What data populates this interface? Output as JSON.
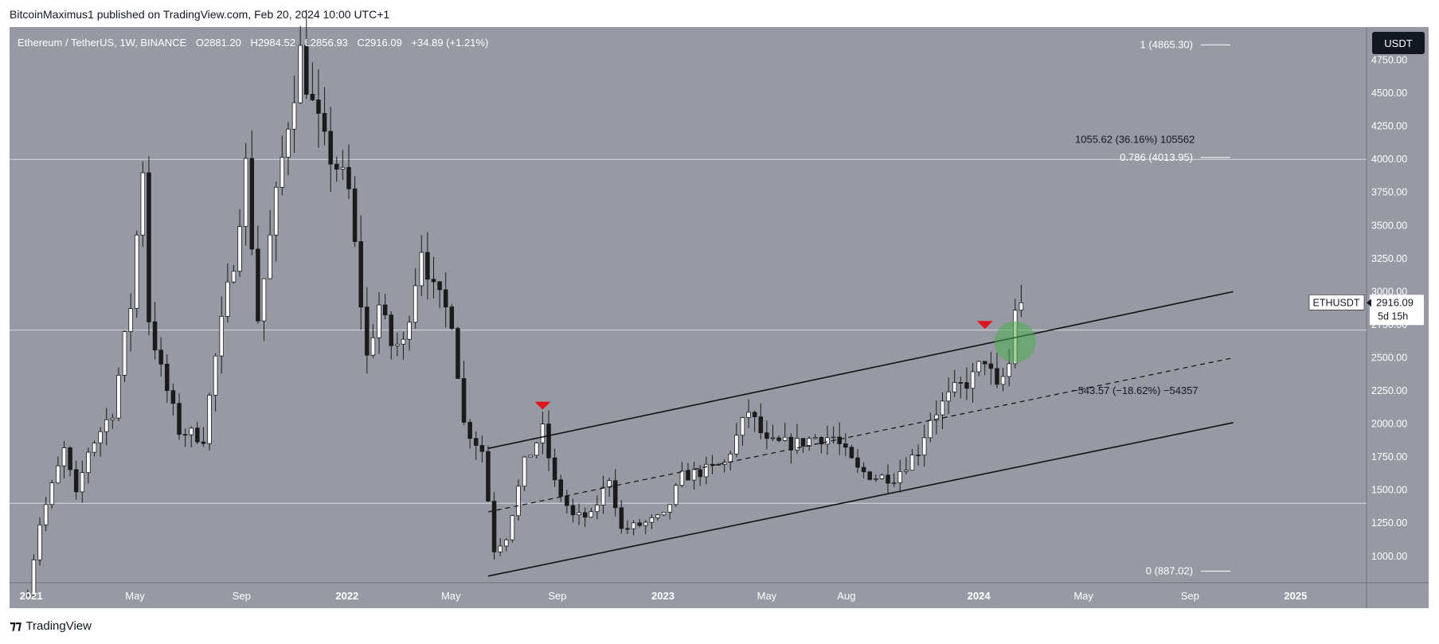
{
  "header": {
    "published_text": "BitcoinMaximus1 published on TradingView.com, Feb 20, 2024 10:00 UTC+1"
  },
  "footer": {
    "logo_text": "TradingView",
    "logo_icon": "tradingview-logo-icon"
  },
  "colors": {
    "panel_bg": "#979aa3",
    "axis_bg": "#979aa3",
    "candle_up": "#ffffff",
    "candle_down": "#1b1b1b",
    "wick": "#1b1b1b",
    "channel": "#111111",
    "signal_marker": "#e0141e",
    "breakout_circle": "#4caf50",
    "horizontal_level": "#d6d8dc"
  },
  "chart_data": {
    "type": "candlestick",
    "symbol_line": {
      "symbol": "Ethereum / TetherUS, 1W, BINANCE",
      "o_label": "O",
      "o_value": "2881.20",
      "h_label": "H",
      "h_value": "2984.52",
      "l_label": "L",
      "l_value": "2856.93",
      "c_label": "C",
      "c_value": "2916.09",
      "change": "+34.89 (+1.21%)"
    },
    "currency_button": "USDT",
    "ylim": [
      800,
      5000
    ],
    "y_ticks": [
      1000,
      1250,
      1500,
      1750,
      2000,
      2250,
      2500,
      2750,
      3000,
      3250,
      3500,
      3750,
      4000,
      4250,
      4500,
      4750
    ],
    "y_tick_labels": [
      "1000.00",
      "1250.00",
      "1500.00",
      "1750.00",
      "2000.00",
      "2250.00",
      "2500.00",
      "2750.00",
      "3000.00",
      "3250.00",
      "3500.00",
      "3750.00",
      "4000.00",
      "4250.00",
      "4500.00",
      "4750.00"
    ],
    "x_range": [
      "2020-12-07",
      "2025-03-24"
    ],
    "x_ticks": [
      {
        "date": "2021-01-01",
        "label": "2021",
        "bold": true
      },
      {
        "date": "2021-05-01",
        "label": "May",
        "bold": false
      },
      {
        "date": "2021-09-01",
        "label": "Sep",
        "bold": false
      },
      {
        "date": "2022-01-01",
        "label": "2022",
        "bold": true
      },
      {
        "date": "2022-05-01",
        "label": "May",
        "bold": false
      },
      {
        "date": "2022-09-01",
        "label": "Sep",
        "bold": false
      },
      {
        "date": "2023-01-01",
        "label": "2023",
        "bold": true
      },
      {
        "date": "2023-05-01",
        "label": "May",
        "bold": false
      },
      {
        "date": "2023-08-01",
        "label": "Aug",
        "bold": false
      },
      {
        "date": "2024-01-01",
        "label": "2024",
        "bold": true
      },
      {
        "date": "2024-05-01",
        "label": "May",
        "bold": false
      },
      {
        "date": "2024-09-01",
        "label": "Sep",
        "bold": false
      },
      {
        "date": "2025-01-01",
        "label": "2025",
        "bold": true
      }
    ],
    "price_path": [
      [
        "2020-12-28",
        730
      ],
      [
        "2021-01-11",
        1250
      ],
      [
        "2021-02-08",
        1800
      ],
      [
        "2021-02-22",
        1450
      ],
      [
        "2021-03-08",
        1800
      ],
      [
        "2021-04-05",
        2100
      ],
      [
        "2021-04-26",
        2900
      ],
      [
        "2021-05-10",
        3950
      ],
      [
        "2021-05-17",
        2800
      ],
      [
        "2021-05-31",
        2400
      ],
      [
        "2021-06-21",
        1950
      ],
      [
        "2021-07-19",
        1900
      ],
      [
        "2021-08-02",
        2500
      ],
      [
        "2021-08-23",
        3250
      ],
      [
        "2021-09-06",
        3950
      ],
      [
        "2021-09-20",
        2800
      ],
      [
        "2021-10-04",
        3400
      ],
      [
        "2021-10-25",
        4300
      ],
      [
        "2021-11-08",
        4800
      ],
      [
        "2021-11-22",
        4400
      ],
      [
        "2021-12-06",
        4100
      ],
      [
        "2021-12-20",
        3950
      ],
      [
        "2022-01-03",
        3750
      ],
      [
        "2022-01-24",
        2500
      ],
      [
        "2022-02-07",
        2900
      ],
      [
        "2022-02-21",
        2600
      ],
      [
        "2022-03-07",
        2600
      ],
      [
        "2022-03-28",
        3350
      ],
      [
        "2022-04-11",
        3000
      ],
      [
        "2022-05-02",
        2800
      ],
      [
        "2022-05-16",
        2000
      ],
      [
        "2022-06-06",
        1800
      ],
      [
        "2022-06-20",
        1050
      ],
      [
        "2022-07-04",
        1150
      ],
      [
        "2022-07-25",
        1700
      ],
      [
        "2022-08-15",
        1950
      ],
      [
        "2022-08-29",
        1550
      ],
      [
        "2022-09-19",
        1300
      ],
      [
        "2022-10-10",
        1300
      ],
      [
        "2022-10-31",
        1600
      ],
      [
        "2022-11-14",
        1200
      ],
      [
        "2022-12-12",
        1250
      ],
      [
        "2023-01-02",
        1300
      ],
      [
        "2023-01-23",
        1600
      ],
      [
        "2023-02-20",
        1650
      ],
      [
        "2023-03-13",
        1700
      ],
      [
        "2023-04-10",
        2100
      ],
      [
        "2023-05-01",
        1850
      ],
      [
        "2023-06-05",
        1850
      ],
      [
        "2023-06-26",
        1900
      ],
      [
        "2023-07-17",
        1900
      ],
      [
        "2023-08-14",
        1650
      ],
      [
        "2023-09-04",
        1600
      ],
      [
        "2023-09-25",
        1600
      ],
      [
        "2023-10-23",
        1800
      ],
      [
        "2023-11-06",
        2050
      ],
      [
        "2023-12-04",
        2250
      ],
      [
        "2023-12-25",
        2350
      ],
      [
        "2024-01-08",
        2500
      ],
      [
        "2024-01-22",
        2250
      ],
      [
        "2024-02-05",
        2450
      ],
      [
        "2024-02-12",
        2880
      ],
      [
        "2024-02-19",
        2916
      ]
    ],
    "horizontal_levels": [
      4000,
      2710,
      1400
    ],
    "channel": {
      "upper": [
        [
          "2022-06-13",
          1815
        ],
        [
          "2024-10-21",
          3000
        ]
      ],
      "middle": [
        [
          "2022-06-13",
          1335
        ],
        [
          "2024-10-21",
          2500
        ]
      ],
      "lower": [
        [
          "2022-06-13",
          850
        ],
        [
          "2024-10-21",
          2010
        ]
      ]
    },
    "signal_markers": [
      {
        "date": "2022-08-15",
        "price": 2120
      },
      {
        "date": "2024-01-08",
        "price": 2730
      }
    ],
    "breakout_circle": {
      "date": "2024-02-12",
      "price": 2620
    },
    "annotations": {
      "fib_1": "1 (4865.30)",
      "fib_1_price": 4865.3,
      "fib_0786": "0.786 (4013.95)",
      "fib_0786_price": 4013.95,
      "fib_0": "0 (887.02)",
      "fib_0_price": 887.02,
      "measure_up": "1055.62 (36.16%) 105562",
      "measure_down": "−543.57 (−18.62%) −54357"
    },
    "last_price_tag": {
      "symbol": "ETHUSDT",
      "price": "2916.09",
      "countdown": "5d 15h",
      "price_value": 2916.09
    }
  }
}
